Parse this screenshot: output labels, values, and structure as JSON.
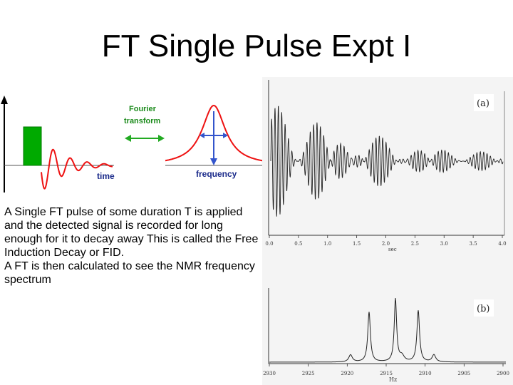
{
  "slide": {
    "title": "FT Single Pulse Expt I"
  },
  "diagram": {
    "fourier_line1": "Fourier",
    "fourier_line2": "transform",
    "time_label": "time",
    "frequency_label": "frequency",
    "pulse_color": "#00aa00",
    "signal_color": "#ee1111",
    "arrow_color": "#22aa22",
    "axis_color": "#3355cc",
    "text_color": "#1a2a8a"
  },
  "body": {
    "paragraph1": "A Single FT pulse of some duration T is applied and the detected signal is recorded for long enough for it to decay away This is called the Free Induction Decay or FID.",
    "paragraph2": "A FT is then calculated to see the NMR frequency spectrum"
  },
  "figure_a": {
    "label": "(a)",
    "x_unit": "sec",
    "x_ticks": [
      "0.0",
      "0.5",
      "1.0",
      "1.5",
      "2.0",
      "2.5",
      "3.0",
      "3.5",
      "4.0"
    ]
  },
  "figure_b": {
    "label": "(b)",
    "x_unit": "Hz",
    "x_ticks": [
      "2930",
      "2925",
      "2920",
      "2915",
      "2910",
      "2905",
      "2900"
    ]
  }
}
